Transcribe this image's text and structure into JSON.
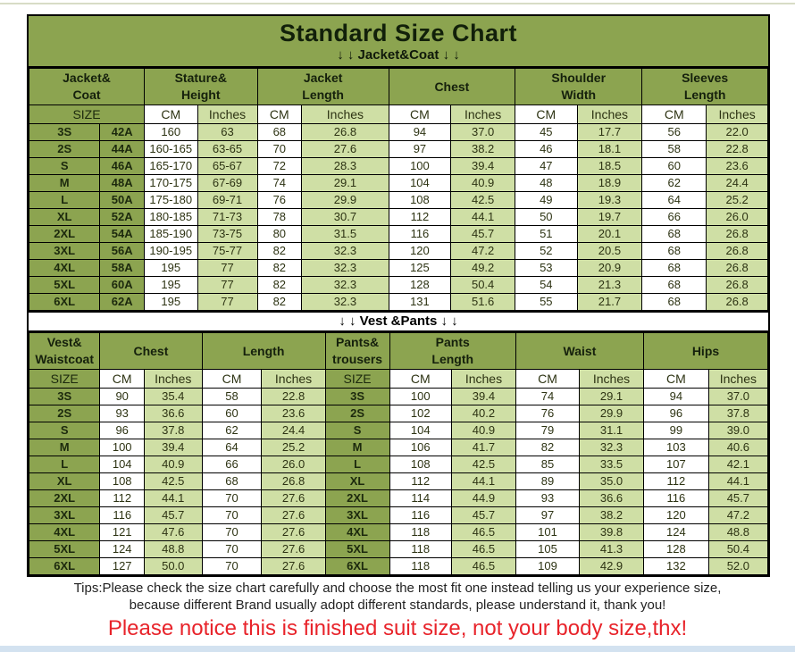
{
  "title": "Standard Size Chart",
  "colors": {
    "table_green": "#8ca450",
    "row_light_green": "#cfdfa5",
    "row_white": "#ffffff",
    "border_black": "#000000",
    "notice_red": "#e8232a",
    "bottom_strip_blue": "#d3e2f0"
  },
  "chart_data": [
    {
      "type": "table",
      "title": "Jacket&Coat",
      "banner": "↓ ↓  Jacket&Coat ↓ ↓",
      "groups": [
        {
          "label": "Jacket&\nCoat"
        },
        {
          "label": "Stature&\nHeight"
        },
        {
          "label": "Jacket\nLength"
        },
        {
          "label": "Chest"
        },
        {
          "label": "Shoulder\nWidth"
        },
        {
          "label": "Sleeves\nLength"
        }
      ],
      "sub_header": [
        "SIZE",
        "CM",
        "Inches",
        "CM",
        "Inches",
        "CM",
        "Inches",
        "CM",
        "Inches",
        "CM",
        "Inches"
      ],
      "rows": [
        [
          "3S",
          "42A",
          "160",
          "63",
          "68",
          "26.8",
          "94",
          "37.0",
          "45",
          "17.7",
          "56",
          "22.0"
        ],
        [
          "2S",
          "44A",
          "160-165",
          "63-65",
          "70",
          "27.6",
          "97",
          "38.2",
          "46",
          "18.1",
          "58",
          "22.8"
        ],
        [
          "S",
          "46A",
          "165-170",
          "65-67",
          "72",
          "28.3",
          "100",
          "39.4",
          "47",
          "18.5",
          "60",
          "23.6"
        ],
        [
          "M",
          "48A",
          "170-175",
          "67-69",
          "74",
          "29.1",
          "104",
          "40.9",
          "48",
          "18.9",
          "62",
          "24.4"
        ],
        [
          "L",
          "50A",
          "175-180",
          "69-71",
          "76",
          "29.9",
          "108",
          "42.5",
          "49",
          "19.3",
          "64",
          "25.2"
        ],
        [
          "XL",
          "52A",
          "180-185",
          "71-73",
          "78",
          "30.7",
          "112",
          "44.1",
          "50",
          "19.7",
          "66",
          "26.0"
        ],
        [
          "2XL",
          "54A",
          "185-190",
          "73-75",
          "80",
          "31.5",
          "116",
          "45.7",
          "51",
          "20.1",
          "68",
          "26.8"
        ],
        [
          "3XL",
          "56A",
          "190-195",
          "75-77",
          "82",
          "32.3",
          "120",
          "47.2",
          "52",
          "20.5",
          "68",
          "26.8"
        ],
        [
          "4XL",
          "58A",
          "195",
          "77",
          "82",
          "32.3",
          "125",
          "49.2",
          "53",
          "20.9",
          "68",
          "26.8"
        ],
        [
          "5XL",
          "60A",
          "195",
          "77",
          "82",
          "32.3",
          "128",
          "50.4",
          "54",
          "21.3",
          "68",
          "26.8"
        ],
        [
          "6XL",
          "62A",
          "195",
          "77",
          "82",
          "32.3",
          "131",
          "51.6",
          "55",
          "21.7",
          "68",
          "26.8"
        ]
      ]
    },
    {
      "type": "table",
      "title": "Vest &Pants",
      "banner": "↓ ↓  Vest &Pants ↓ ↓",
      "groups": [
        {
          "label": "Vest&\nWaistcoat"
        },
        {
          "label": "Chest"
        },
        {
          "label": "Length"
        },
        {
          "label": "Pants&\ntrousers"
        },
        {
          "label": "Pants\nLength"
        },
        {
          "label": "Waist"
        },
        {
          "label": "Hips"
        }
      ],
      "sub_header": [
        "SIZE",
        "CM",
        "Inches",
        "CM",
        "Inches",
        "SIZE",
        "CM",
        "Inches",
        "CM",
        "Inches",
        "CM",
        "Inches"
      ],
      "rows": [
        [
          "3S",
          "90",
          "35.4",
          "58",
          "22.8",
          "3S",
          "100",
          "39.4",
          "74",
          "29.1",
          "94",
          "37.0"
        ],
        [
          "2S",
          "93",
          "36.6",
          "60",
          "23.6",
          "2S",
          "102",
          "40.2",
          "76",
          "29.9",
          "96",
          "37.8"
        ],
        [
          "S",
          "96",
          "37.8",
          "62",
          "24.4",
          "S",
          "104",
          "40.9",
          "79",
          "31.1",
          "99",
          "39.0"
        ],
        [
          "M",
          "100",
          "39.4",
          "64",
          "25.2",
          "M",
          "106",
          "41.7",
          "82",
          "32.3",
          "103",
          "40.6"
        ],
        [
          "L",
          "104",
          "40.9",
          "66",
          "26.0",
          "L",
          "108",
          "42.5",
          "85",
          "33.5",
          "107",
          "42.1"
        ],
        [
          "XL",
          "108",
          "42.5",
          "68",
          "26.8",
          "XL",
          "112",
          "44.1",
          "89",
          "35.0",
          "112",
          "44.1"
        ],
        [
          "2XL",
          "112",
          "44.1",
          "70",
          "27.6",
          "2XL",
          "114",
          "44.9",
          "93",
          "36.6",
          "116",
          "45.7"
        ],
        [
          "3XL",
          "116",
          "45.7",
          "70",
          "27.6",
          "3XL",
          "116",
          "45.7",
          "97",
          "38.2",
          "120",
          "47.2"
        ],
        [
          "4XL",
          "121",
          "47.6",
          "70",
          "27.6",
          "4XL",
          "118",
          "46.5",
          "101",
          "39.8",
          "124",
          "48.8"
        ],
        [
          "5XL",
          "124",
          "48.8",
          "70",
          "27.6",
          "5XL",
          "118",
          "46.5",
          "105",
          "41.3",
          "128",
          "50.4"
        ],
        [
          "6XL",
          "127",
          "50.0",
          "70",
          "27.6",
          "6XL",
          "118",
          "46.5",
          "109",
          "42.9",
          "132",
          "52.0"
        ]
      ]
    }
  ],
  "footer": {
    "tips_line1": "Tips:Please check the size chart carefully and choose the most fit one instead telling us your experience size,",
    "tips_line2": "because different Brand usually adopt different standards, please understand it, thank you!",
    "notice": "Please notice this is finished suit size, not your body size,thx!"
  }
}
